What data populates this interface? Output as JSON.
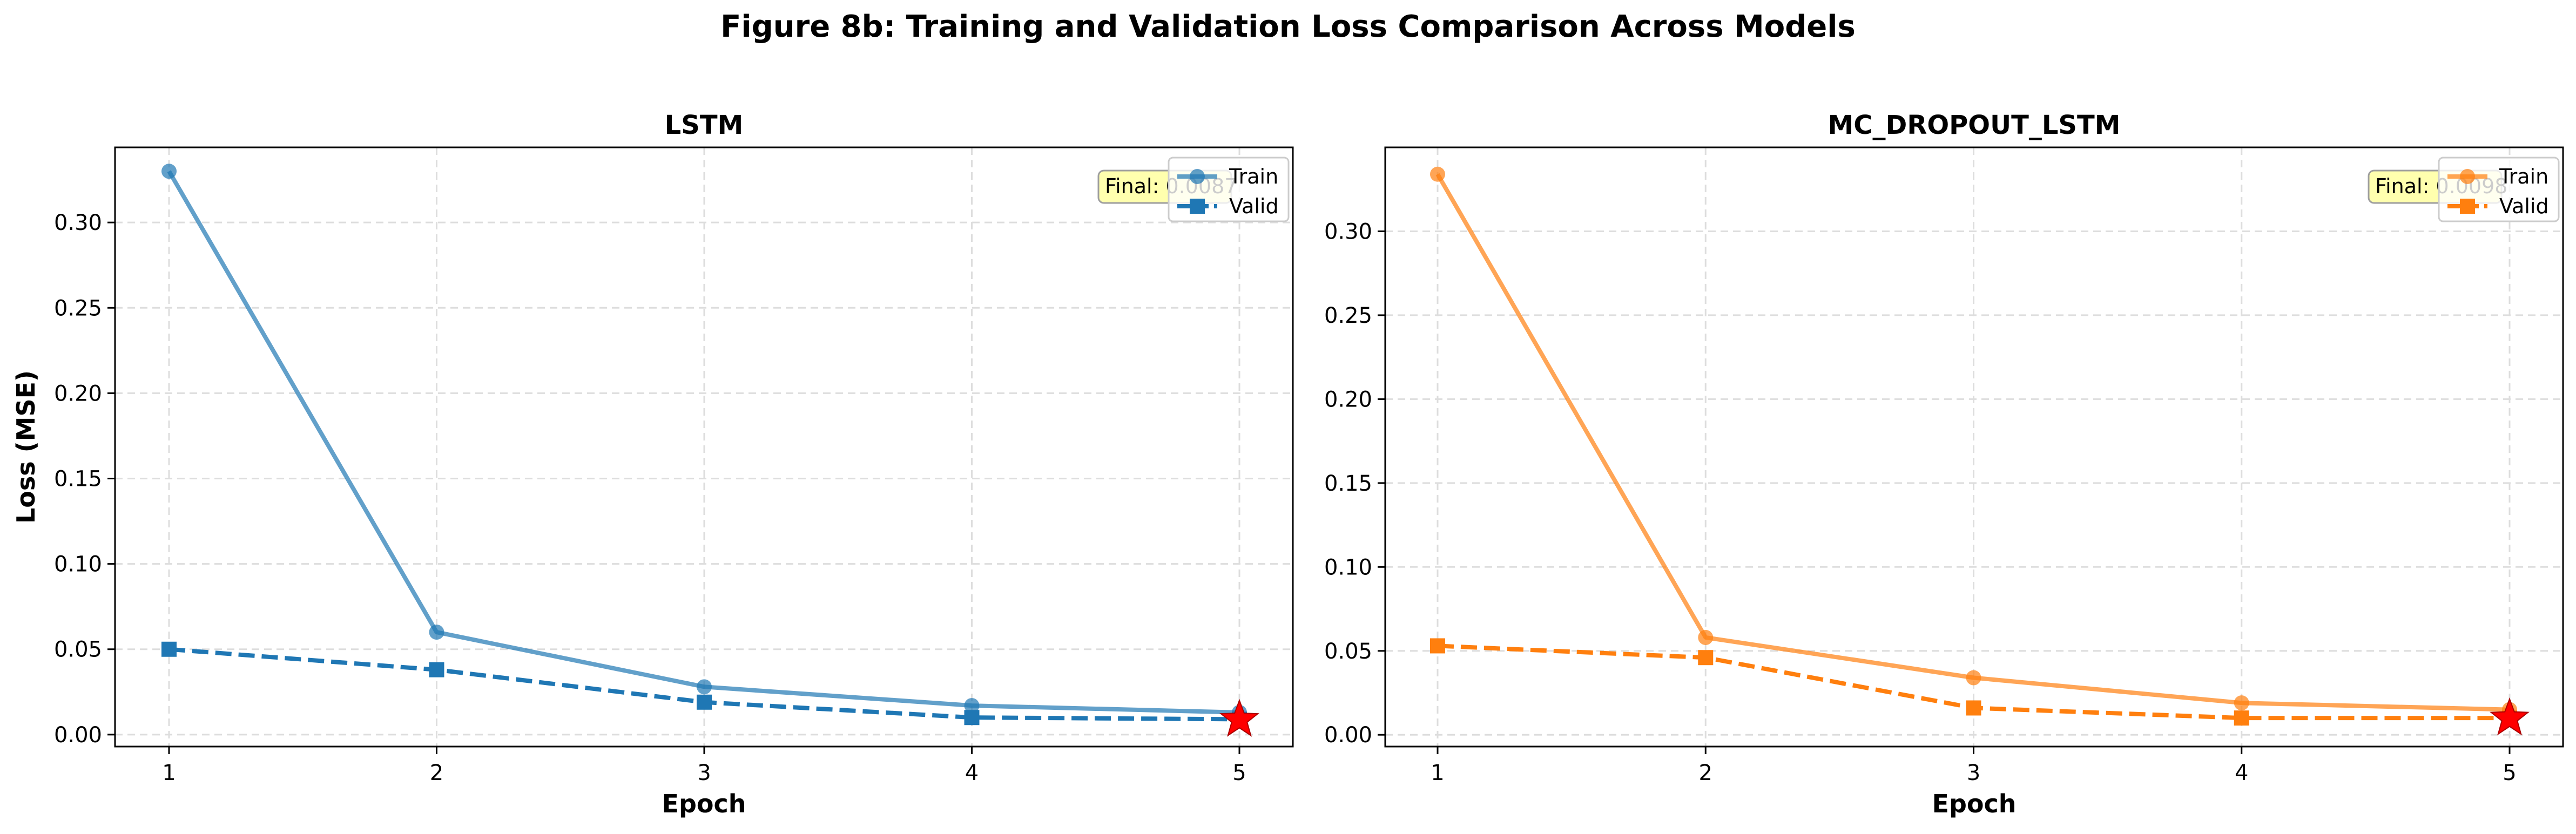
{
  "suptitle": "Figure 8b: Training and Validation Loss Comparison Across Models",
  "chart_data": [
    {
      "type": "line",
      "title": "LSTM",
      "xlabel": "Epoch",
      "ylabel": "Loss (MSE)",
      "x": [
        1,
        2,
        3,
        4,
        5
      ],
      "xticks": [
        "1",
        "2",
        "3",
        "4",
        "5"
      ],
      "ylim": [
        -0.007,
        0.344
      ],
      "yticks": [
        "0.00",
        "0.05",
        "0.10",
        "0.15",
        "0.20",
        "0.25",
        "0.30"
      ],
      "grid": true,
      "legend_position": "top-right",
      "color": "#1f77b4",
      "series": [
        {
          "name": "Train",
          "style": "solid",
          "marker": "circle",
          "values": [
            0.33,
            0.06,
            0.028,
            0.017,
            0.013
          ]
        },
        {
          "name": "Valid",
          "style": "dashed",
          "marker": "square",
          "values": [
            0.05,
            0.038,
            0.019,
            0.01,
            0.009
          ]
        }
      ],
      "best_marker": {
        "epoch": 5,
        "value": 0.0087,
        "color": "#ff0000"
      },
      "annotation": {
        "label": "Final: ",
        "value": "0.0087"
      }
    },
    {
      "type": "line",
      "title": "MC_DROPOUT_LSTM",
      "xlabel": "Epoch",
      "ylabel": "",
      "x": [
        1,
        2,
        3,
        4,
        5
      ],
      "xticks": [
        "1",
        "2",
        "3",
        "4",
        "5"
      ],
      "ylim": [
        -0.007,
        0.35
      ],
      "yticks": [
        "0.00",
        "0.05",
        "0.10",
        "0.15",
        "0.20",
        "0.25",
        "0.30"
      ],
      "grid": true,
      "legend_position": "top-right",
      "color": "#ff7f0e",
      "series": [
        {
          "name": "Train",
          "style": "solid",
          "marker": "circle",
          "values": [
            0.334,
            0.058,
            0.034,
            0.019,
            0.015
          ]
        },
        {
          "name": "Valid",
          "style": "dashed",
          "marker": "square",
          "values": [
            0.053,
            0.046,
            0.016,
            0.01,
            0.01
          ]
        }
      ],
      "best_marker": {
        "epoch": 5,
        "value": 0.0098,
        "color": "#ff0000"
      },
      "annotation": {
        "label": "Final: ",
        "value": "0.0098"
      }
    }
  ]
}
